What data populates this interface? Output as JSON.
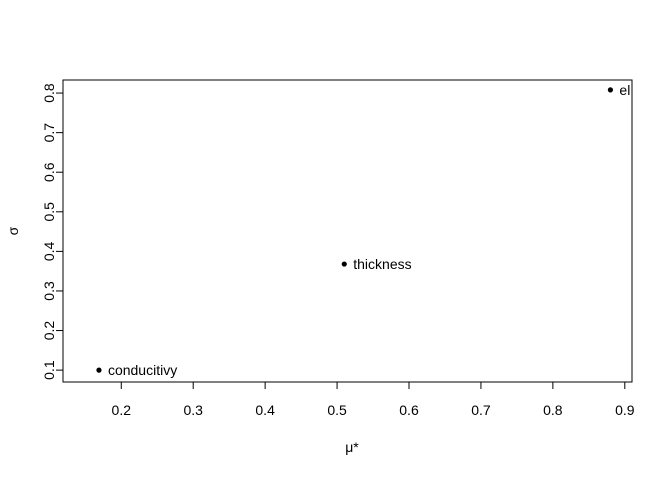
{
  "chart_data": {
    "type": "scatter",
    "xlabel": "μ*",
    "ylabel": "σ",
    "x": [
      0.169,
      0.51,
      0.88
    ],
    "values": [
      0.1,
      0.368,
      0.808
    ],
    "point_labels": [
      "conducitivy",
      "thickness",
      "el"
    ],
    "color": "#000000",
    "xlim": [
      0.119,
      0.91
    ],
    "ylim": [
      0.07,
      0.833
    ],
    "xticks": [
      0.2,
      0.3,
      0.4,
      0.5,
      0.6,
      0.7,
      0.8,
      0.9
    ],
    "yticks": [
      0.1,
      0.2,
      0.3,
      0.4,
      0.5,
      0.6,
      0.7,
      0.8
    ]
  }
}
